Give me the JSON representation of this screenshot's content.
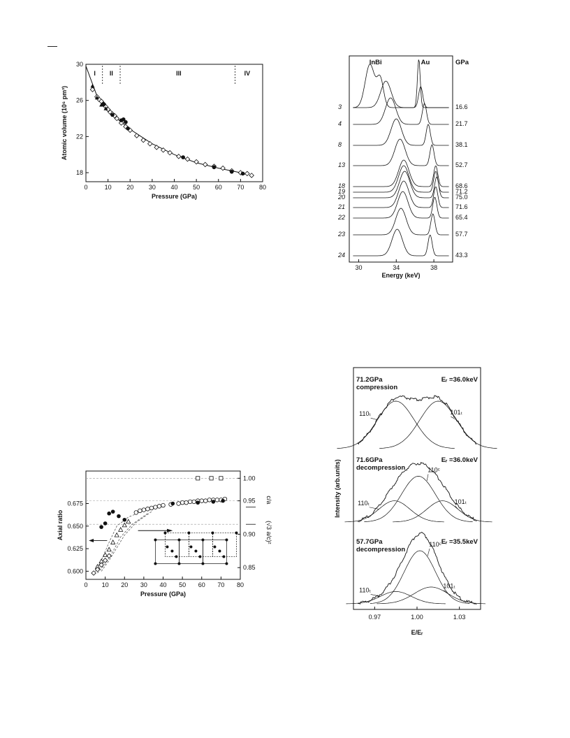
{
  "page": {
    "corner_mark": "—"
  },
  "chart_data": [
    {
      "id": "volume",
      "type": "scatter",
      "xlabel": "Pressure (GPa)",
      "ylabel": "Atomic volume (10⁶ pm³)",
      "xlim": [
        0,
        80
      ],
      "ylim": [
        17,
        30
      ],
      "xticks": [
        "0",
        "10",
        "20",
        "30",
        "40",
        "50",
        "60",
        "70",
        "80"
      ],
      "yticks": [
        "18",
        "22",
        "26",
        "30"
      ],
      "phase_labels": [
        {
          "text": "I",
          "x": 4
        },
        {
          "text": "II",
          "x": 11.5
        },
        {
          "text": "III",
          "x": 42
        },
        {
          "text": "IV",
          "x": 73
        }
      ],
      "phase_boundaries": [
        7.5,
        15.5,
        67.5
      ],
      "series": [
        {
          "marker": "open-diamond",
          "x": [
            3,
            5,
            6,
            7,
            8,
            9,
            10,
            11,
            12,
            13,
            14,
            16,
            18,
            20,
            23,
            26,
            29,
            32,
            35,
            38,
            42,
            46,
            50,
            54,
            58,
            62,
            66,
            70,
            73,
            75
          ],
          "y": [
            27.2,
            26.4,
            26.1,
            25.9,
            25.6,
            25.3,
            25.0,
            24.7,
            24.5,
            24.3,
            24.0,
            23.5,
            23.1,
            22.7,
            22.1,
            21.6,
            21.2,
            20.8,
            20.5,
            20.2,
            19.8,
            19.5,
            19.2,
            18.9,
            18.7,
            18.5,
            18.2,
            18.0,
            17.9,
            17.7
          ]
        },
        {
          "marker": "filled-circle",
          "x": [
            8,
            12,
            16,
            17,
            18,
            19,
            44,
            58,
            66,
            71
          ],
          "y": [
            25.6,
            24.4,
            23.8,
            23.9,
            23.6,
            22.9,
            19.7,
            18.6,
            18.1,
            17.9
          ]
        },
        {
          "marker": "filled-triangle",
          "x": [
            3,
            5,
            7,
            9
          ],
          "y": [
            27.6,
            26.3,
            25.5,
            25.1
          ]
        }
      ],
      "fit_curve": {
        "x": [
          0,
          5,
          10,
          15,
          20,
          25,
          30,
          40,
          50,
          60,
          70,
          72
        ],
        "y": [
          29.8,
          26.5,
          25.0,
          23.8,
          22.8,
          22.0,
          21.2,
          20.0,
          19.1,
          18.5,
          18.0,
          17.8
        ]
      }
    },
    {
      "id": "spectra",
      "type": "line",
      "xlabel": "Energy (keV)",
      "xlim": [
        29,
        40
      ],
      "xticks": [
        "30",
        "34",
        "38"
      ],
      "header": {
        "sample": "InBi",
        "standard": "Au",
        "unit": "GPa"
      },
      "series": [
        {
          "index": "3",
          "pressure": "16.6",
          "peaks": [
            32.9,
            36.6
          ]
        },
        {
          "index": "4",
          "pressure": "21.7",
          "peaks": [
            33.4,
            37.0
          ]
        },
        {
          "index": "8",
          "pressure": "38.1",
          "peaks": [
            34.0,
            37.4
          ]
        },
        {
          "index": "13",
          "pressure": "52.7",
          "peaks": [
            34.4,
            37.8
          ]
        },
        {
          "index": "18",
          "pressure": "68.6",
          "peaks": [
            34.8,
            38.2
          ]
        },
        {
          "index": "19",
          "pressure": "71.2",
          "peaks": [
            34.8,
            38.2
          ]
        },
        {
          "index": "20",
          "pressure": "75.0",
          "peaks": [
            34.9,
            38.3
          ]
        },
        {
          "index": "21",
          "pressure": "71.6",
          "peaks": [
            34.8,
            38.2
          ]
        },
        {
          "index": "22",
          "pressure": "65.4",
          "peaks": [
            34.7,
            38.1
          ]
        },
        {
          "index": "23",
          "pressure": "57.7",
          "peaks": [
            34.5,
            37.9
          ]
        },
        {
          "index": "24",
          "pressure": "43.3",
          "peaks": [
            34.1,
            37.6
          ]
        }
      ],
      "top_profile_peaks": [
        31.2,
        32.3,
        36.4
      ]
    },
    {
      "id": "axial",
      "type": "scatter",
      "xlabel": "Pressure (GPa)",
      "ylabel": "Axial ratio",
      "xlim": [
        0,
        80
      ],
      "ylim": [
        0.591,
        0.711
      ],
      "xticks": [
        "0",
        "10",
        "20",
        "30",
        "40",
        "50",
        "60",
        "70",
        "80"
      ],
      "yticks": [
        "0.600",
        "0.625",
        "0.650",
        "0.675"
      ],
      "right_ticks": [
        "0.85",
        "0.90",
        "0.95",
        "1.00"
      ],
      "right_ratio_labels": [
        "c/a",
        "(√3 a/c)²"
      ],
      "series": [
        {
          "marker": "open-circle",
          "x": [
            26,
            28,
            30,
            32,
            34,
            36,
            38,
            40,
            44,
            48,
            50,
            52,
            54,
            56,
            58,
            60,
            62,
            64,
            66,
            68,
            70,
            72
          ],
          "y": [
            0.665,
            0.667,
            0.668,
            0.669,
            0.67,
            0.671,
            0.672,
            0.673,
            0.674,
            0.675,
            0.676,
            0.676,
            0.677,
            0.677,
            0.678,
            0.678,
            0.678,
            0.679,
            0.679,
            0.679,
            0.679,
            0.68
          ]
        },
        {
          "marker": "filled-circle",
          "x": [
            8,
            10,
            12,
            14,
            17,
            20,
            45,
            58,
            66,
            71
          ],
          "y": [
            0.649,
            0.653,
            0.664,
            0.666,
            0.661,
            0.657,
            0.675,
            0.676,
            0.677,
            0.678
          ]
        },
        {
          "marker": "open-triangle",
          "x": [
            6,
            8,
            10,
            12,
            14,
            16,
            18,
            20,
            22
          ],
          "y": [
            0.605,
            0.611,
            0.618,
            0.624,
            0.632,
            0.64,
            0.646,
            0.651,
            0.655
          ]
        },
        {
          "marker": "open-square",
          "x": [
            58,
            65,
            70
          ],
          "y": [
            0.703,
            0.703,
            0.703
          ]
        },
        {
          "marker": "open-diamond",
          "x": [
            4,
            6,
            8,
            10,
            12
          ],
          "y": [
            0.598,
            0.602,
            0.607,
            0.612,
            0.617
          ]
        }
      ]
    },
    {
      "id": "profiles",
      "type": "line",
      "xlabel": "E/Eᵣ",
      "ylabel": "Intensity (arb.units)",
      "xlim": [
        0.955,
        1.045
      ],
      "xticks": [
        "0.97",
        "1.00",
        "1.03"
      ],
      "panels": [
        {
          "pressure": "71.2GPa",
          "mode": "compression",
          "energy": "Eᵣ =36.0keV",
          "components": [
            {
              "label": "110ₜ",
              "center": 0.985,
              "width": 0.013,
              "amp": 0.85
            },
            {
              "label": "101ₜ",
              "center": 1.015,
              "width": 0.013,
              "amp": 0.85
            }
          ]
        },
        {
          "pressure": "71.6GPa",
          "mode": "decompression",
          "energy": "Eᵣ =36.0keV",
          "components": [
            {
              "label": "110ₜ",
              "center": 0.984,
              "width": 0.011,
              "amp": 0.38
            },
            {
              "label": "110ᶜ",
              "center": 1.001,
              "width": 0.012,
              "amp": 0.82
            },
            {
              "label": "101ₜ",
              "center": 1.018,
              "width": 0.011,
              "amp": 0.38
            }
          ]
        },
        {
          "pressure": "57.7GPa",
          "mode": "decompression",
          "energy": "Eᵣ =35.5keV",
          "components": [
            {
              "label": "110ₜ",
              "center": 0.985,
              "width": 0.011,
              "amp": 0.22
            },
            {
              "label": "110ᶜ",
              "center": 1.002,
              "width": 0.011,
              "amp": 0.95
            },
            {
              "label": "101ₜ",
              "center": 1.01,
              "width": 0.012,
              "amp": 0.3
            }
          ]
        }
      ]
    }
  ]
}
